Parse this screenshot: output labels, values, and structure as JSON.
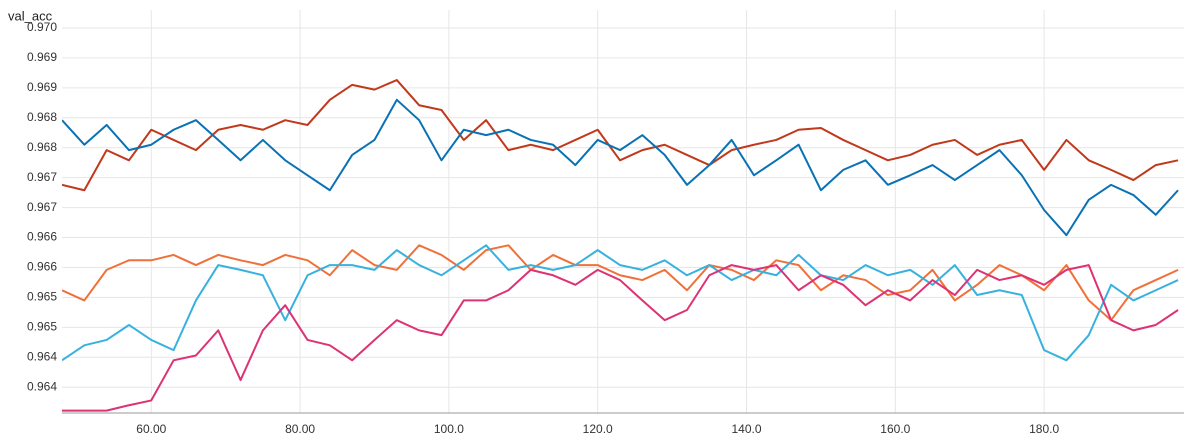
{
  "chart_data": {
    "type": "line",
    "title": "val_acc",
    "x": [
      48,
      51,
      54,
      57,
      60,
      63,
      66,
      69,
      72,
      75,
      78,
      81,
      84,
      87,
      90,
      93,
      96,
      99,
      102,
      105,
      108,
      111,
      114,
      117,
      120,
      123,
      126,
      129,
      132,
      135,
      138,
      141,
      144,
      147,
      150,
      153,
      156,
      159,
      162,
      165,
      168,
      171,
      174,
      177,
      180,
      183,
      186,
      189,
      192,
      195,
      198
    ],
    "xlim": [
      48,
      198.8
    ],
    "xticks": [
      {
        "value": 60,
        "label": "60.00"
      },
      {
        "value": 80,
        "label": "80.00"
      },
      {
        "value": 100,
        "label": "100.0"
      },
      {
        "value": 120,
        "label": "120.0"
      },
      {
        "value": 140,
        "label": "140.0"
      },
      {
        "value": 160,
        "label": "160.0"
      },
      {
        "value": 180,
        "label": "180.0"
      }
    ],
    "ylim": [
      0.96357,
      0.9703
    ],
    "yticks": [
      {
        "value": 0.97,
        "label": "0.970"
      },
      {
        "value": 0.9695,
        "label": "0.969"
      },
      {
        "value": 0.969,
        "label": "0.969"
      },
      {
        "value": 0.9685,
        "label": "0.968"
      },
      {
        "value": 0.968,
        "label": "0.968"
      },
      {
        "value": 0.9675,
        "label": "0.967"
      },
      {
        "value": 0.967,
        "label": "0.967"
      },
      {
        "value": 0.9665,
        "label": "0.966"
      },
      {
        "value": 0.966,
        "label": "0.966"
      },
      {
        "value": 0.9655,
        "label": "0.965"
      },
      {
        "value": 0.965,
        "label": "0.965"
      },
      {
        "value": 0.9645,
        "label": "0.964"
      },
      {
        "value": 0.964,
        "label": "0.964"
      }
    ],
    "grid": true,
    "series": [
      {
        "color": "#c0391b",
        "values": [
          0.96738,
          0.96729,
          0.96796,
          0.96779,
          0.9683,
          0.96813,
          0.96796,
          0.9683,
          0.96838,
          0.9683,
          0.96846,
          0.96838,
          0.9688,
          0.96905,
          0.96897,
          0.96913,
          0.96871,
          0.96863,
          0.96813,
          0.96846,
          0.96796,
          0.96805,
          0.96796,
          0.96813,
          0.9683,
          0.96779,
          0.96796,
          0.96805,
          0.96788,
          0.96771,
          0.96796,
          0.96805,
          0.96813,
          0.9683,
          0.96833,
          0.96813,
          0.96796,
          0.96779,
          0.96788,
          0.96805,
          0.96813,
          0.96788,
          0.96805,
          0.96813,
          0.96763,
          0.96813,
          0.96779,
          0.96763,
          0.96746,
          0.96771,
          0.96779
        ]
      },
      {
        "color": "#0a72b4",
        "values": [
          0.96846,
          0.96805,
          0.96838,
          0.96796,
          0.96805,
          0.9683,
          0.96846,
          0.96813,
          0.96779,
          0.96813,
          0.96779,
          0.96754,
          0.96729,
          0.96788,
          0.96813,
          0.9688,
          0.96846,
          0.96779,
          0.9683,
          0.96821,
          0.9683,
          0.96813,
          0.96805,
          0.96771,
          0.96813,
          0.96796,
          0.96821,
          0.96788,
          0.96738,
          0.96771,
          0.96813,
          0.96754,
          0.96779,
          0.96805,
          0.96729,
          0.96763,
          0.96779,
          0.96738,
          0.96754,
          0.96771,
          0.96746,
          0.96771,
          0.96796,
          0.96754,
          0.96696,
          0.96654,
          0.96713,
          0.96738,
          0.96721,
          0.96688,
          0.96729
        ]
      },
      {
        "color": "#f0703a",
        "values": [
          0.96562,
          0.96545,
          0.96596,
          0.96612,
          0.96612,
          0.96621,
          0.96604,
          0.96621,
          0.96612,
          0.96604,
          0.96621,
          0.96612,
          0.96587,
          0.96629,
          0.96604,
          0.96596,
          0.96637,
          0.96621,
          0.96596,
          0.96629,
          0.96637,
          0.96596,
          0.96621,
          0.96604,
          0.96604,
          0.96587,
          0.96579,
          0.96596,
          0.96562,
          0.96604,
          0.96596,
          0.96579,
          0.96612,
          0.96604,
          0.96562,
          0.96587,
          0.96579,
          0.96554,
          0.96562,
          0.96596,
          0.96545,
          0.96571,
          0.96604,
          0.96587,
          0.96562,
          0.96604,
          0.96545,
          0.96512,
          0.96562,
          0.96579,
          0.96596
        ]
      },
      {
        "color": "#37b1de",
        "values": [
          0.96445,
          0.9647,
          0.96479,
          0.96504,
          0.96479,
          0.96462,
          0.96545,
          0.96604,
          0.96596,
          0.96587,
          0.96512,
          0.96587,
          0.96604,
          0.96604,
          0.96596,
          0.96629,
          0.96604,
          0.96587,
          0.96612,
          0.96637,
          0.96596,
          0.96604,
          0.96596,
          0.96604,
          0.96629,
          0.96604,
          0.96596,
          0.96612,
          0.96587,
          0.96604,
          0.96579,
          0.96596,
          0.96587,
          0.96621,
          0.96587,
          0.96579,
          0.96604,
          0.96587,
          0.96596,
          0.96571,
          0.96604,
          0.96554,
          0.96562,
          0.96554,
          0.96462,
          0.96445,
          0.96487,
          0.96571,
          0.96545,
          0.96562,
          0.96579
        ]
      },
      {
        "color": "#dd3274",
        "values": [
          0.96361,
          0.96361,
          0.96361,
          0.9637,
          0.96378,
          0.96445,
          0.96453,
          0.96495,
          0.96412,
          0.96495,
          0.96537,
          0.96479,
          0.9647,
          0.96445,
          0.96479,
          0.96512,
          0.96495,
          0.96487,
          0.96545,
          0.96545,
          0.96562,
          0.96596,
          0.96587,
          0.96571,
          0.96596,
          0.96579,
          0.96545,
          0.96512,
          0.96529,
          0.96587,
          0.96604,
          0.96596,
          0.96604,
          0.96562,
          0.96587,
          0.96571,
          0.96537,
          0.96562,
          0.96545,
          0.96579,
          0.96554,
          0.96596,
          0.96579,
          0.96587,
          0.96571,
          0.96596,
          0.96604,
          0.96512,
          0.96495,
          0.96504,
          0.96529
        ]
      }
    ]
  }
}
